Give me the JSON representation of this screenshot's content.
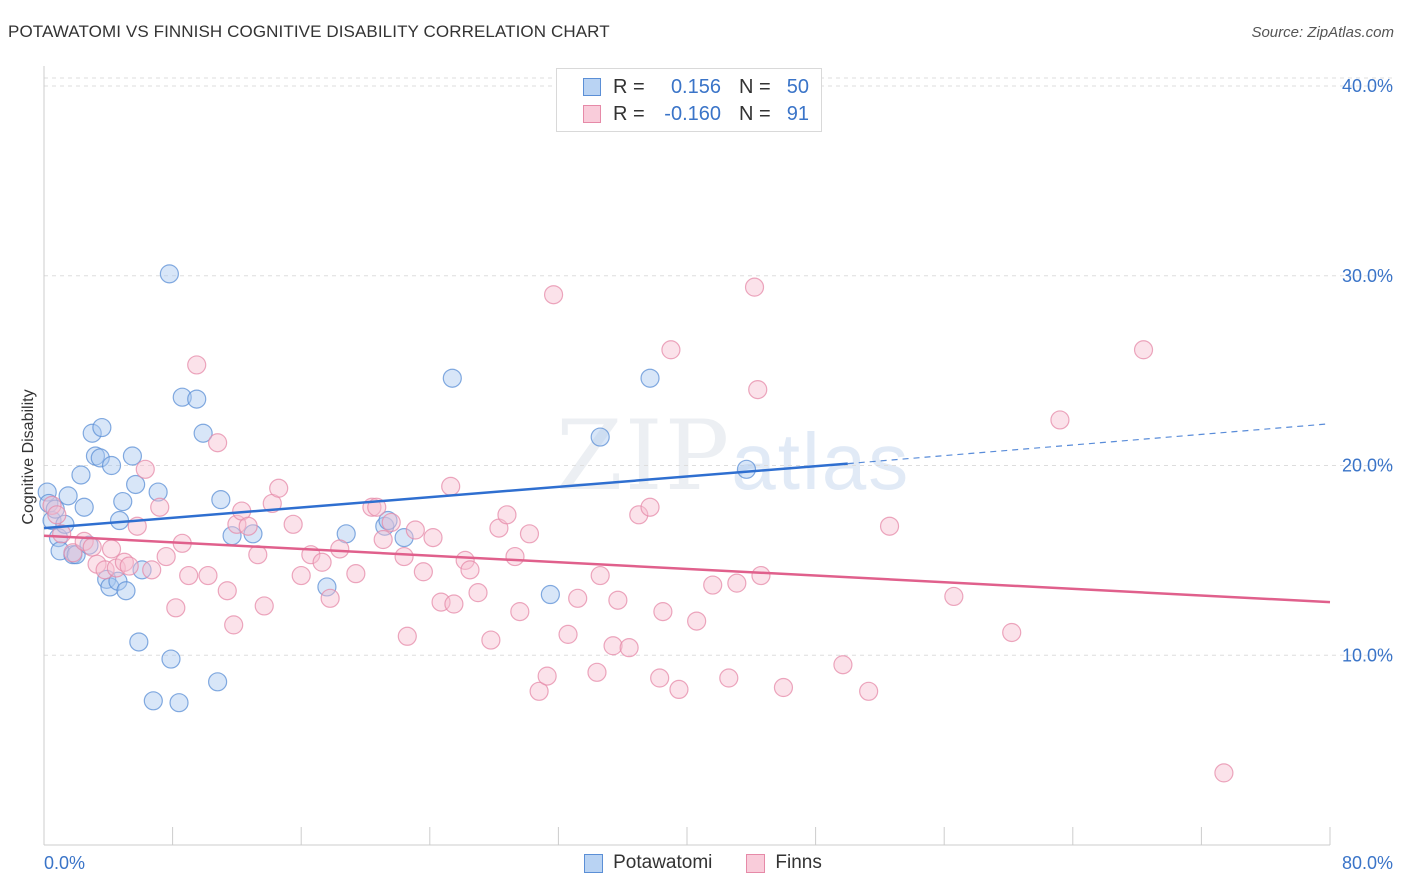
{
  "title": "POTAWATOMI VS FINNISH COGNITIVE DISABILITY CORRELATION CHART",
  "source": "Source: ZipAtlas.com",
  "watermark": {
    "zip": "ZIP",
    "atlas": "atlas"
  },
  "legend": {
    "rows": [
      {
        "r_label": "R =",
        "r_value": "0.156",
        "n_label": "N =",
        "n_value": "50"
      },
      {
        "r_label": "R =",
        "r_value": "-0.160",
        "n_label": "N =",
        "n_value": "91"
      }
    ]
  },
  "bottom_legend": {
    "series1": "Potawatomi",
    "series2": "Finns"
  },
  "colors": {
    "potawatomi_fill": "#a9c8f0",
    "potawatomi_stroke": "#5b8fd6",
    "potawatomi_line": "#2f6fd0",
    "finns_fill": "#f6bfd0",
    "finns_stroke": "#e68aa8",
    "finns_line": "#e0608c",
    "tick_text": "#3a74c8",
    "grid": "#dddddd"
  },
  "chart_data": {
    "type": "scatter",
    "title": "POTAWATOMI VS FINNISH COGNITIVE DISABILITY CORRELATION CHART",
    "xlabel": "",
    "ylabel": "Cognitive Disability",
    "xlim": [
      0,
      80
    ],
    "ylim": [
      0,
      40
    ],
    "x_tick_labels": [
      "0.0%",
      "80.0%"
    ],
    "y_ticks": [
      10,
      20,
      30,
      40
    ],
    "y_tick_labels": [
      "10.0%",
      "20.0%",
      "30.0%",
      "40.0%"
    ],
    "grid": true,
    "legend_position": "top-center",
    "series": [
      {
        "name": "Potawatomi",
        "r": 0.156,
        "n": 50,
        "trend": {
          "x0": 0,
          "y0": 16.7,
          "x1": 50,
          "y1": 20.1,
          "dashed_to_x": 80,
          "dashed_to_y": 22.2
        },
        "points": [
          [
            0.2,
            18.6
          ],
          [
            0.3,
            18.0
          ],
          [
            0.5,
            17.1
          ],
          [
            0.7,
            17.7
          ],
          [
            0.9,
            16.2
          ],
          [
            1.0,
            15.5
          ],
          [
            1.3,
            16.9
          ],
          [
            1.5,
            18.4
          ],
          [
            1.8,
            15.3
          ],
          [
            2.0,
            15.3
          ],
          [
            2.3,
            19.5
          ],
          [
            2.5,
            17.8
          ],
          [
            2.8,
            15.8
          ],
          [
            3.0,
            21.7
          ],
          [
            3.2,
            20.5
          ],
          [
            3.5,
            20.4
          ],
          [
            3.6,
            22.0
          ],
          [
            3.9,
            14.0
          ],
          [
            4.1,
            13.6
          ],
          [
            4.2,
            20.0
          ],
          [
            4.6,
            13.9
          ],
          [
            4.7,
            17.1
          ],
          [
            4.9,
            18.1
          ],
          [
            5.1,
            13.4
          ],
          [
            5.5,
            20.5
          ],
          [
            5.7,
            19.0
          ],
          [
            5.9,
            10.7
          ],
          [
            6.1,
            14.5
          ],
          [
            6.8,
            7.6
          ],
          [
            7.1,
            18.6
          ],
          [
            7.8,
            30.1
          ],
          [
            7.9,
            9.8
          ],
          [
            8.4,
            7.5
          ],
          [
            8.6,
            23.6
          ],
          [
            9.5,
            23.5
          ],
          [
            9.9,
            21.7
          ],
          [
            10.8,
            8.6
          ],
          [
            11.0,
            18.2
          ],
          [
            11.7,
            16.3
          ],
          [
            13.0,
            16.4
          ],
          [
            17.6,
            13.6
          ],
          [
            18.8,
            16.4
          ],
          [
            21.2,
            16.8
          ],
          [
            21.4,
            17.1
          ],
          [
            22.4,
            16.2
          ],
          [
            25.4,
            24.6
          ],
          [
            31.5,
            13.2
          ],
          [
            34.6,
            21.5
          ],
          [
            37.7,
            24.6
          ],
          [
            43.7,
            19.8
          ]
        ]
      },
      {
        "name": "Finns",
        "r": -0.16,
        "n": 91,
        "trend": {
          "x0": 0,
          "y0": 16.3,
          "x1": 80,
          "y1": 12.8
        },
        "points": [
          [
            0.5,
            17.9
          ],
          [
            0.8,
            17.4
          ],
          [
            1.1,
            16.4
          ],
          [
            1.8,
            15.4
          ],
          [
            2.5,
            16.0
          ],
          [
            3.0,
            15.7
          ],
          [
            3.3,
            14.8
          ],
          [
            3.8,
            14.5
          ],
          [
            4.2,
            15.6
          ],
          [
            4.5,
            14.6
          ],
          [
            5.0,
            14.9
          ],
          [
            5.3,
            14.7
          ],
          [
            5.8,
            16.8
          ],
          [
            6.3,
            19.8
          ],
          [
            6.7,
            14.5
          ],
          [
            7.2,
            17.8
          ],
          [
            7.6,
            15.2
          ],
          [
            8.2,
            12.5
          ],
          [
            8.6,
            15.9
          ],
          [
            9.0,
            14.2
          ],
          [
            9.5,
            25.3
          ],
          [
            10.2,
            14.2
          ],
          [
            10.8,
            21.2
          ],
          [
            11.4,
            13.4
          ],
          [
            11.8,
            11.6
          ],
          [
            12.0,
            16.9
          ],
          [
            12.3,
            17.6
          ],
          [
            12.7,
            16.8
          ],
          [
            13.3,
            15.3
          ],
          [
            13.7,
            12.6
          ],
          [
            14.2,
            18.0
          ],
          [
            14.6,
            18.8
          ],
          [
            15.5,
            16.9
          ],
          [
            16.0,
            14.2
          ],
          [
            16.6,
            15.3
          ],
          [
            17.3,
            14.9
          ],
          [
            17.8,
            13.0
          ],
          [
            18.4,
            15.6
          ],
          [
            19.4,
            14.3
          ],
          [
            20.4,
            17.8
          ],
          [
            20.7,
            17.8
          ],
          [
            21.1,
            16.1
          ],
          [
            21.6,
            17.0
          ],
          [
            22.4,
            15.2
          ],
          [
            22.6,
            11.0
          ],
          [
            23.1,
            16.6
          ],
          [
            23.6,
            14.4
          ],
          [
            24.2,
            16.2
          ],
          [
            24.7,
            12.8
          ],
          [
            25.3,
            18.9
          ],
          [
            25.5,
            12.7
          ],
          [
            26.2,
            15.0
          ],
          [
            26.5,
            14.5
          ],
          [
            27.0,
            13.3
          ],
          [
            27.8,
            10.8
          ],
          [
            28.3,
            16.7
          ],
          [
            28.8,
            17.4
          ],
          [
            29.3,
            15.2
          ],
          [
            29.6,
            12.3
          ],
          [
            30.2,
            16.4
          ],
          [
            30.8,
            8.1
          ],
          [
            31.3,
            8.9
          ],
          [
            31.7,
            29.0
          ],
          [
            32.6,
            11.1
          ],
          [
            33.2,
            13.0
          ],
          [
            34.4,
            9.1
          ],
          [
            34.6,
            14.2
          ],
          [
            35.4,
            10.5
          ],
          [
            35.7,
            12.9
          ],
          [
            36.4,
            10.4
          ],
          [
            37.0,
            17.4
          ],
          [
            37.7,
            17.8
          ],
          [
            38.3,
            8.8
          ],
          [
            38.5,
            12.3
          ],
          [
            39.0,
            26.1
          ],
          [
            39.5,
            8.2
          ],
          [
            40.6,
            11.8
          ],
          [
            41.6,
            13.7
          ],
          [
            42.6,
            8.8
          ],
          [
            43.1,
            13.8
          ],
          [
            44.2,
            29.4
          ],
          [
            44.4,
            24.0
          ],
          [
            44.6,
            14.2
          ],
          [
            46.0,
            8.3
          ],
          [
            49.7,
            9.5
          ],
          [
            51.3,
            8.1
          ],
          [
            52.6,
            16.8
          ],
          [
            56.6,
            13.1
          ],
          [
            60.2,
            11.2
          ],
          [
            63.2,
            22.4
          ],
          [
            68.4,
            26.1
          ],
          [
            73.4,
            3.8
          ]
        ]
      }
    ]
  }
}
